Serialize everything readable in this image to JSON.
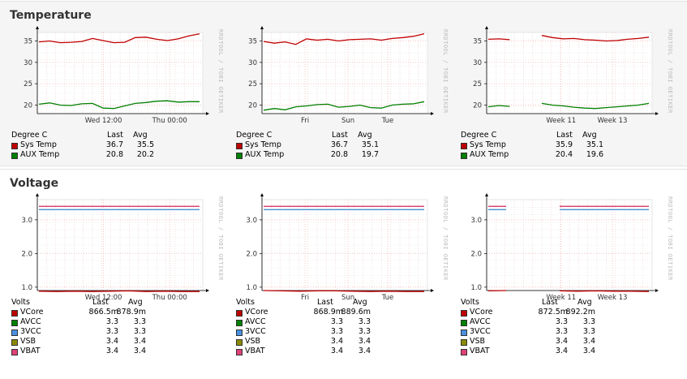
{
  "sections": [
    {
      "title": "Temperature",
      "graphs": [
        {
          "y_ticks": [
            "35",
            "30",
            "25",
            "20"
          ],
          "x_ticks": [
            "Wed 12:00",
            "Thu 00:00"
          ],
          "watermark": "RRDTOOL / TOBI OETIKER",
          "legend": {
            "unit": "Degree C",
            "last_label": "Last",
            "avg_label": "Avg",
            "rows": [
              {
                "name": "Sys Temp",
                "color": "#c00000",
                "last": "36.7",
                "avg": "35.5"
              },
              {
                "name": "AUX Temp",
                "color": "#008000",
                "last": "20.8",
                "avg": "20.2"
              }
            ]
          }
        },
        {
          "y_ticks": [
            "35",
            "30",
            "25",
            "20"
          ],
          "x_ticks": [
            "Fri",
            "Sun",
            "Tue"
          ],
          "watermark": "RRDTOOL / TOBI OETIKER",
          "legend": {
            "unit": "Degree C",
            "last_label": "Last",
            "avg_label": "Avg",
            "rows": [
              {
                "name": "Sys Temp",
                "color": "#c00000",
                "last": "36.7",
                "avg": "35.1"
              },
              {
                "name": "AUX Temp",
                "color": "#008000",
                "last": "20.8",
                "avg": "19.7"
              }
            ]
          }
        },
        {
          "y_ticks": [
            "35",
            "30",
            "25",
            "20"
          ],
          "x_ticks": [
            "Week 11",
            "Week 13"
          ],
          "watermark": "RRDTOOL / TOBI OETIKER",
          "legend": {
            "unit": "Degree C",
            "last_label": "Last",
            "avg_label": "Avg",
            "rows": [
              {
                "name": "Sys Temp",
                "color": "#c00000",
                "last": "35.9",
                "avg": "35.1"
              },
              {
                "name": "AUX Temp",
                "color": "#008000",
                "last": "20.4",
                "avg": "19.6"
              }
            ]
          }
        }
      ]
    },
    {
      "title": "Voltage",
      "graphs": [
        {
          "y_ticks": [
            "3.0",
            "2.0",
            "1.0"
          ],
          "x_ticks": [
            "Wed 12:00",
            "Thu 00:00"
          ],
          "watermark": "RRDTOOL / TOBI OETIKER",
          "legend": {
            "unit": "Volts",
            "last_label": "Last",
            "avg_label": "Avg",
            "rows": [
              {
                "name": "VCore",
                "color": "#c00000",
                "last": "866.5m",
                "avg": "878.9m"
              },
              {
                "name": "AVCC",
                "color": "#008000",
                "last": "3.3",
                "avg": "3.3"
              },
              {
                "name": "3VCC",
                "color": "#4a90e2",
                "last": "3.3",
                "avg": "3.3"
              },
              {
                "name": "VSB",
                "color": "#8a8a00",
                "last": "3.4",
                "avg": "3.4"
              },
              {
                "name": "VBAT",
                "color": "#e0407a",
                "last": "3.4",
                "avg": "3.4"
              }
            ]
          }
        },
        {
          "y_ticks": [
            "3.0",
            "2.0",
            "1.0"
          ],
          "x_ticks": [
            "Fri",
            "Sun",
            "Tue"
          ],
          "watermark": "RRDTOOL / TOBI OETIKER",
          "legend": {
            "unit": "Volts",
            "last_label": "Last",
            "avg_label": "Avg",
            "rows": [
              {
                "name": "VCore",
                "color": "#c00000",
                "last": "868.9m",
                "avg": "889.6m"
              },
              {
                "name": "AVCC",
                "color": "#008000",
                "last": "3.3",
                "avg": "3.3"
              },
              {
                "name": "3VCC",
                "color": "#4a90e2",
                "last": "3.3",
                "avg": "3.3"
              },
              {
                "name": "VSB",
                "color": "#8a8a00",
                "last": "3.4",
                "avg": "3.4"
              },
              {
                "name": "VBAT",
                "color": "#e0407a",
                "last": "3.4",
                "avg": "3.4"
              }
            ]
          }
        },
        {
          "y_ticks": [
            "3.0",
            "2.0",
            "1.0"
          ],
          "x_ticks": [
            "Week 11",
            "Week 13"
          ],
          "watermark": "RRDTOOL / TOBI OETIKER",
          "legend": {
            "unit": "Volts",
            "last_label": "Last",
            "avg_label": "Avg",
            "rows": [
              {
                "name": "VCore",
                "color": "#c00000",
                "last": "872.5m",
                "avg": "892.2m"
              },
              {
                "name": "AVCC",
                "color": "#008000",
                "last": "3.3",
                "avg": "3.3"
              },
              {
                "name": "3VCC",
                "color": "#4a90e2",
                "last": "3.3",
                "avg": "3.3"
              },
              {
                "name": "VSB",
                "color": "#8a8a00",
                "last": "3.4",
                "avg": "3.4"
              },
              {
                "name": "VBAT",
                "color": "#e0407a",
                "last": "3.4",
                "avg": "3.4"
              }
            ]
          }
        }
      ]
    }
  ],
  "chart_data": [
    {
      "type": "line",
      "title": "",
      "ylabel": "",
      "ylim": [
        18,
        37
      ],
      "x_ticks": [
        "Wed 12:00",
        "Thu 00:00"
      ],
      "series": [
        {
          "name": "Sys Temp",
          "values": [
            34.8,
            35.0,
            34.6,
            34.7,
            34.9,
            35.6,
            35.1,
            34.6,
            34.7,
            35.8,
            35.9,
            35.4,
            35.1,
            35.5,
            36.2,
            36.7
          ]
        },
        {
          "name": "AUX Temp",
          "values": [
            20.2,
            20.5,
            20.0,
            19.9,
            20.3,
            20.4,
            19.3,
            19.2,
            19.8,
            20.4,
            20.6,
            20.9,
            21.0,
            20.7,
            20.8,
            20.8
          ]
        }
      ]
    },
    {
      "type": "line",
      "title": "",
      "ylabel": "",
      "ylim": [
        18,
        37
      ],
      "x_ticks": [
        "Fri",
        "Sun",
        "Tue"
      ],
      "series": [
        {
          "name": "Sys Temp",
          "values": [
            34.9,
            34.5,
            34.8,
            34.2,
            35.5,
            35.2,
            35.4,
            35.0,
            35.3,
            35.4,
            35.5,
            35.2,
            35.6,
            35.8,
            36.1,
            36.7
          ]
        },
        {
          "name": "AUX Temp",
          "values": [
            18.8,
            19.2,
            18.9,
            19.6,
            19.8,
            20.1,
            20.2,
            19.5,
            19.7,
            20.0,
            19.4,
            19.3,
            20.0,
            20.2,
            20.3,
            20.8
          ]
        }
      ]
    },
    {
      "type": "line",
      "title": "",
      "ylabel": "",
      "ylim": [
        18,
        37
      ],
      "x_ticks": [
        "Week 11",
        "Week 13"
      ],
      "series": [
        {
          "name": "Sys Temp",
          "values": [
            35.4,
            35.5,
            35.3,
            null,
            null,
            36.3,
            35.8,
            35.5,
            35.6,
            35.3,
            35.2,
            35.0,
            35.1,
            35.4,
            35.6,
            35.9
          ]
        },
        {
          "name": "AUX Temp",
          "values": [
            19.6,
            19.9,
            19.7,
            null,
            null,
            20.4,
            20.0,
            19.8,
            19.5,
            19.3,
            19.2,
            19.4,
            19.6,
            19.8,
            20.0,
            20.4
          ]
        }
      ]
    },
    {
      "type": "line",
      "title": "",
      "ylabel": "",
      "ylim": [
        0.9,
        3.6
      ],
      "x_ticks": [
        "Wed 12:00",
        "Thu 00:00"
      ],
      "series": [
        {
          "name": "VCore",
          "values": [
            0.88,
            0.87,
            0.88,
            0.87,
            0.88,
            0.89,
            0.87,
            0.88,
            0.87,
            0.87
          ]
        },
        {
          "name": "AVCC",
          "values": [
            3.3,
            3.3,
            3.3,
            3.3,
            3.3,
            3.3,
            3.3,
            3.3,
            3.3,
            3.3
          ]
        },
        {
          "name": "3VCC",
          "values": [
            3.3,
            3.3,
            3.3,
            3.3,
            3.3,
            3.3,
            3.3,
            3.3,
            3.3,
            3.3
          ]
        },
        {
          "name": "VSB",
          "values": [
            3.4,
            3.4,
            3.4,
            3.4,
            3.4,
            3.4,
            3.4,
            3.4,
            3.4,
            3.4
          ]
        },
        {
          "name": "VBAT",
          "values": [
            3.4,
            3.4,
            3.4,
            3.4,
            3.4,
            3.4,
            3.4,
            3.4,
            3.4,
            3.4
          ]
        }
      ]
    },
    {
      "type": "line",
      "title": "",
      "ylabel": "",
      "ylim": [
        0.9,
        3.6
      ],
      "x_ticks": [
        "Fri",
        "Sun",
        "Tue"
      ],
      "series": [
        {
          "name": "VCore",
          "values": [
            0.9,
            0.89,
            0.88,
            0.89,
            0.89,
            0.88,
            0.87,
            0.88,
            0.87,
            0.87
          ]
        },
        {
          "name": "AVCC",
          "values": [
            3.3,
            3.3,
            3.3,
            3.3,
            3.3,
            3.3,
            3.3,
            3.3,
            3.3,
            3.3
          ]
        },
        {
          "name": "3VCC",
          "values": [
            3.3,
            3.3,
            3.3,
            3.3,
            3.3,
            3.3,
            3.3,
            3.3,
            3.3,
            3.3
          ]
        },
        {
          "name": "VSB",
          "values": [
            3.4,
            3.4,
            3.4,
            3.4,
            3.4,
            3.4,
            3.4,
            3.4,
            3.4,
            3.4
          ]
        },
        {
          "name": "VBAT",
          "values": [
            3.4,
            3.4,
            3.4,
            3.4,
            3.4,
            3.4,
            3.4,
            3.4,
            3.4,
            3.4
          ]
        }
      ]
    },
    {
      "type": "line",
      "title": "",
      "ylabel": "",
      "ylim": [
        0.9,
        3.6
      ],
      "x_ticks": [
        "Week 11",
        "Week 13"
      ],
      "series": [
        {
          "name": "VCore",
          "values": [
            0.89,
            0.9,
            null,
            null,
            0.89,
            0.88,
            0.89,
            0.88,
            0.88,
            0.87
          ]
        },
        {
          "name": "AVCC",
          "values": [
            3.3,
            3.3,
            null,
            null,
            3.3,
            3.3,
            3.3,
            3.3,
            3.3,
            3.3
          ]
        },
        {
          "name": "3VCC",
          "values": [
            3.3,
            3.3,
            null,
            null,
            3.3,
            3.3,
            3.3,
            3.3,
            3.3,
            3.3
          ]
        },
        {
          "name": "VSB",
          "values": [
            3.4,
            3.4,
            null,
            null,
            3.4,
            3.4,
            3.4,
            3.4,
            3.4,
            3.4
          ]
        },
        {
          "name": "VBAT",
          "values": [
            3.4,
            3.4,
            null,
            null,
            3.4,
            3.4,
            3.4,
            3.4,
            3.4,
            3.4
          ]
        }
      ]
    }
  ]
}
